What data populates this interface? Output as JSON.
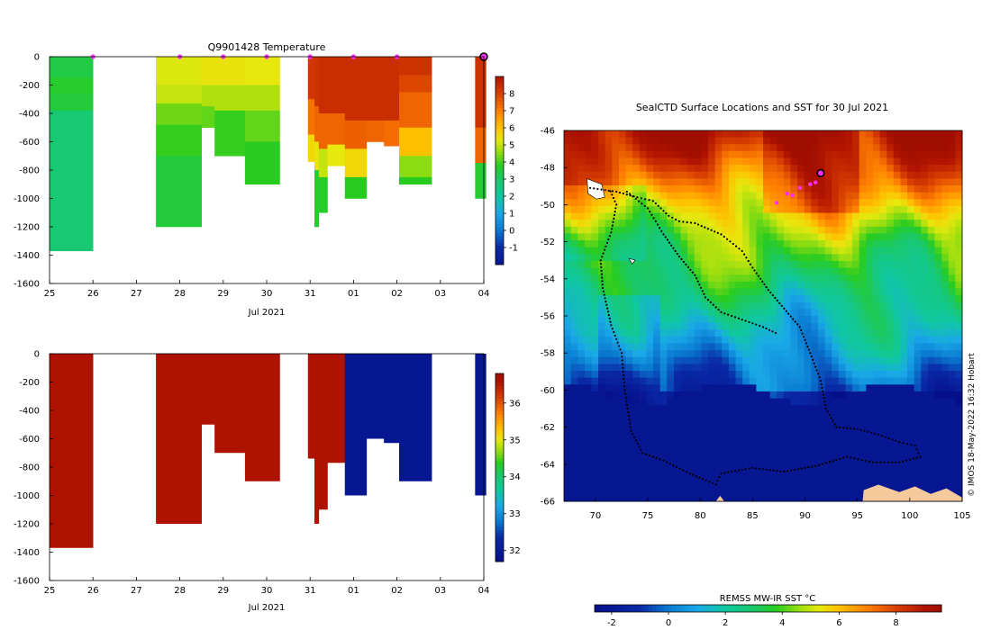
{
  "chart_data": [
    {
      "type": "heatmap",
      "id": "temperature-profile",
      "title": "Q9901428  Temperature",
      "xlabel": "Jul 2021",
      "x_ticks": [
        "25",
        "26",
        "27",
        "28",
        "29",
        "30",
        "31",
        "01",
        "02",
        "03",
        "04"
      ],
      "y_ticks": [
        "0",
        "-200",
        "-400",
        "-600",
        "-800",
        "-1000",
        "-1200",
        "-1400",
        "-1600"
      ],
      "ylim": [
        -1600,
        0
      ],
      "xlim": [
        0,
        10
      ],
      "colorbar": {
        "ticks": [
          "8",
          "7",
          "6",
          "5",
          "4",
          "3",
          "2",
          "1",
          "0",
          "-1"
        ],
        "range": [
          -2,
          9
        ]
      },
      "surface_markers": [
        1,
        3,
        4,
        5,
        6,
        7,
        8
      ],
      "last_marker": 10,
      "profiles": [
        {
          "x0": 0.0,
          "x1": 1.0,
          "bottom": 1370,
          "bands": [
            [
              0,
              150,
              3.4
            ],
            [
              150,
              260,
              3.7
            ],
            [
              260,
              380,
              3.5
            ],
            [
              380,
              1370,
              2.8
            ]
          ]
        },
        {
          "x0": 2.45,
          "x1": 3.5,
          "bottom": 1200,
          "bands": [
            [
              0,
              200,
              5.2
            ],
            [
              200,
              330,
              5.0
            ],
            [
              330,
              480,
              4.3
            ],
            [
              480,
              700,
              3.9
            ],
            [
              700,
              1200,
              3.5
            ]
          ]
        },
        {
          "x0": 3.5,
          "x1": 3.8,
          "bottom": 500,
          "bands": [
            [
              0,
              200,
              5.4
            ],
            [
              200,
              350,
              4.8
            ],
            [
              350,
              500,
              4.2
            ]
          ]
        },
        {
          "x0": 3.8,
          "x1": 4.5,
          "bottom": 700,
          "bands": [
            [
              0,
              200,
              5.4
            ],
            [
              200,
              380,
              4.8
            ],
            [
              380,
              700,
              3.9
            ]
          ]
        },
        {
          "x0": 4.5,
          "x1": 5.3,
          "bottom": 900,
          "bands": [
            [
              0,
              200,
              5.3
            ],
            [
              200,
              380,
              4.8
            ],
            [
              380,
              600,
              4.2
            ],
            [
              600,
              900,
              3.8
            ]
          ]
        },
        {
          "x0": 5.95,
          "x1": 6.1,
          "bottom": 740,
          "bands": [
            [
              0,
              300,
              8.2
            ],
            [
              300,
              550,
              7.2
            ],
            [
              550,
              740,
              5.6
            ]
          ]
        },
        {
          "x0": 6.1,
          "x1": 6.2,
          "bottom": 1200,
          "bands": [
            [
              0,
              350,
              8.3
            ],
            [
              350,
              600,
              7.4
            ],
            [
              600,
              800,
              5.4
            ],
            [
              800,
              1200,
              3.6
            ]
          ]
        },
        {
          "x0": 6.2,
          "x1": 6.4,
          "bottom": 1100,
          "bands": [
            [
              0,
              400,
              8.4
            ],
            [
              400,
              650,
              7.4
            ],
            [
              650,
              850,
              5.0
            ],
            [
              850,
              1100,
              3.7
            ]
          ]
        },
        {
          "x0": 6.4,
          "x1": 6.8,
          "bottom": 770,
          "bands": [
            [
              0,
              400,
              8.4
            ],
            [
              400,
              620,
              7.4
            ],
            [
              620,
              770,
              5.3
            ]
          ]
        },
        {
          "x0": 6.8,
          "x1": 7.3,
          "bottom": 1000,
          "bands": [
            [
              0,
              450,
              8.4
            ],
            [
              450,
              650,
              7.5
            ],
            [
              650,
              850,
              5.6
            ],
            [
              850,
              1000,
              3.8
            ]
          ]
        },
        {
          "x0": 7.3,
          "x1": 7.7,
          "bottom": 600,
          "bands": [
            [
              0,
              450,
              8.4
            ],
            [
              450,
              600,
              7.4
            ]
          ]
        },
        {
          "x0": 7.7,
          "x1": 8.05,
          "bottom": 630,
          "bands": [
            [
              0,
              450,
              8.4
            ],
            [
              450,
              630,
              7.3
            ]
          ]
        },
        {
          "x0": 8.05,
          "x1": 8.8,
          "bottom": 900,
          "bands": [
            [
              0,
              130,
              8.3
            ],
            [
              130,
              250,
              7.9
            ],
            [
              250,
              500,
              7.4
            ],
            [
              500,
              700,
              6.0
            ],
            [
              700,
              850,
              4.5
            ],
            [
              850,
              900,
              3.8
            ]
          ]
        },
        {
          "x0": 9.8,
          "x1": 10.05,
          "bottom": 1000,
          "bands": [
            [
              0,
              500,
              8.3
            ],
            [
              500,
              750,
              7.4
            ],
            [
              750,
              1000,
              3.6
            ]
          ]
        }
      ]
    },
    {
      "type": "heatmap",
      "id": "salinity-profile",
      "title": "",
      "xlabel": "Jul 2021",
      "x_ticks": [
        "25",
        "26",
        "27",
        "28",
        "29",
        "30",
        "31",
        "01",
        "02",
        "03",
        "04"
      ],
      "y_ticks": [
        "0",
        "-200",
        "-400",
        "-600",
        "-800",
        "-1000",
        "-1200",
        "-1400",
        "-1600"
      ],
      "ylim": [
        -1600,
        0
      ],
      "xlim": [
        0,
        10
      ],
      "colorbar": {
        "ticks": [
          "36",
          "35",
          "34",
          "33",
          "32"
        ],
        "range": [
          31.7,
          36.8
        ]
      },
      "profiles": [
        {
          "x0": 0.0,
          "x1": 1.0,
          "bottom": 1370,
          "value": 36.6
        },
        {
          "x0": 2.45,
          "x1": 3.5,
          "bottom": 1200,
          "value": 36.6
        },
        {
          "x0": 3.5,
          "x1": 3.8,
          "bottom": 500,
          "value": 36.6
        },
        {
          "x0": 3.8,
          "x1": 4.5,
          "bottom": 700,
          "value": 36.6
        },
        {
          "x0": 4.5,
          "x1": 5.3,
          "bottom": 900,
          "value": 36.6
        },
        {
          "x0": 5.95,
          "x1": 6.1,
          "bottom": 740,
          "value": 36.6
        },
        {
          "x0": 6.1,
          "x1": 6.2,
          "bottom": 1200,
          "value": 36.6
        },
        {
          "x0": 6.2,
          "x1": 6.4,
          "bottom": 1100,
          "value": 36.6
        },
        {
          "x0": 6.4,
          "x1": 6.8,
          "bottom": 770,
          "value": 36.6
        },
        {
          "x0": 6.8,
          "x1": 7.3,
          "bottom": 1000,
          "value": 31.9
        },
        {
          "x0": 7.3,
          "x1": 7.7,
          "bottom": 600,
          "value": 31.9
        },
        {
          "x0": 7.7,
          "x1": 8.05,
          "bottom": 630,
          "value": 31.9
        },
        {
          "x0": 8.05,
          "x1": 8.8,
          "bottom": 900,
          "value": 31.9
        },
        {
          "x0": 9.8,
          "x1": 10.05,
          "bottom": 1000,
          "value": 31.9
        }
      ]
    },
    {
      "type": "heatmap",
      "id": "sst-map",
      "title": "SealCTD Surface Locations and SST for 30 Jul 2021",
      "x_ticks": [
        "70",
        "75",
        "80",
        "85",
        "90",
        "95",
        "100",
        "105"
      ],
      "y_ticks": [
        "-46",
        "-48",
        "-50",
        "-52",
        "-54",
        "-56",
        "-58",
        "-60",
        "-62",
        "-64",
        "-66"
      ],
      "xlim": [
        67,
        105
      ],
      "ylim": [
        -66,
        -46
      ],
      "colorbar_label": "REMSS MW-IR SST °C",
      "colorbar": {
        "ticks": [
          "-2",
          "0",
          "2",
          "4",
          "6",
          "8"
        ],
        "range": [
          -2.6,
          9.6
        ]
      },
      "credit": "© IMOS 18-May-2022 16:32 Hobart",
      "track": [
        [
          69.5,
          -49.1
        ],
        [
          72,
          -49.3
        ],
        [
          74,
          -49.6
        ],
        [
          75.5,
          -49.8
        ],
        [
          77,
          -50.6
        ],
        [
          78,
          -50.9
        ],
        [
          79.5,
          -51.0
        ],
        [
          82,
          -51.6
        ],
        [
          84,
          -52.5
        ],
        [
          85,
          -53.4
        ],
        [
          86.5,
          -54.6
        ],
        [
          88,
          -55.6
        ],
        [
          89.5,
          -56.6
        ],
        [
          90.5,
          -58.0
        ],
        [
          91.5,
          -59.5
        ],
        [
          92,
          -61.0
        ],
        [
          93,
          -62.0
        ],
        [
          95,
          -62.1
        ],
        [
          97,
          -62.4
        ],
        [
          99,
          -62.8
        ],
        [
          100.5,
          -63.0
        ],
        [
          101,
          -63.6
        ],
        [
          99,
          -63.9
        ],
        [
          96.5,
          -63.9
        ],
        [
          94,
          -63.6
        ],
        [
          91,
          -64.1
        ],
        [
          88,
          -64.4
        ],
        [
          85,
          -64.2
        ],
        [
          82,
          -64.5
        ],
        [
          81.5,
          -65.1
        ],
        [
          79,
          -64.5
        ],
        [
          76.5,
          -63.8
        ],
        [
          74.5,
          -63.4
        ],
        [
          73.4,
          -62.2
        ],
        [
          72.8,
          -60.0
        ],
        [
          72.5,
          -58.0
        ],
        [
          71.5,
          -56.5
        ],
        [
          70.7,
          -54.5
        ],
        [
          70.5,
          -53.0
        ],
        [
          71.5,
          -51.5
        ],
        [
          72,
          -50.0
        ],
        [
          71.3,
          -49.1
        ]
      ],
      "track2": [
        [
          73,
          -49.3
        ],
        [
          75,
          -50.2
        ],
        [
          76.5,
          -51.6
        ],
        [
          78,
          -52.8
        ],
        [
          79.5,
          -53.8
        ],
        [
          80.5,
          -55.0
        ],
        [
          82,
          -55.8
        ],
        [
          84,
          -56.2
        ],
        [
          86,
          -56.6
        ],
        [
          87.5,
          -57.0
        ]
      ],
      "surface_points": [
        [
          87.3,
          -49.9
        ],
        [
          88.3,
          -49.4
        ],
        [
          88.8,
          -49.5
        ],
        [
          89.5,
          -49.1
        ],
        [
          90.5,
          -48.9
        ],
        [
          91,
          -48.8
        ]
      ],
      "last_point": [
        91.5,
        -48.3
      ],
      "colormap": [
        [
          -2.6,
          "#060f8a"
        ],
        [
          -1,
          "#0a2aa6"
        ],
        [
          0,
          "#0a7ad0"
        ],
        [
          1,
          "#1aa8e8"
        ],
        [
          2,
          "#10c8a0"
        ],
        [
          3,
          "#1ac868"
        ],
        [
          3.8,
          "#28cc20"
        ],
        [
          4.6,
          "#9ade10"
        ],
        [
          5.3,
          "#e6e80e"
        ],
        [
          6,
          "#ffc000"
        ],
        [
          7,
          "#ff8000"
        ],
        [
          8,
          "#d84000"
        ],
        [
          9,
          "#b01400"
        ],
        [
          9.6,
          "#a00e00"
        ]
      ]
    }
  ]
}
